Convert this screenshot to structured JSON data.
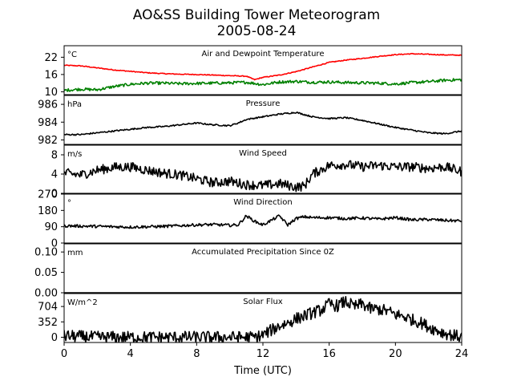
{
  "chart_data": {
    "type": "line",
    "title": "AO&SS Building Tower Meteorogram",
    "subtitle": "2005-08-24",
    "xlabel": "Time (UTC)",
    "xlim": [
      0,
      24
    ],
    "xticks": [
      0,
      4,
      8,
      12,
      16,
      20,
      24
    ],
    "panels": [
      {
        "name": "temperature",
        "title": "Air and Dewpoint Temperature",
        "unit": "°C",
        "ylim": [
          9,
          26
        ],
        "yticks": [
          10,
          16,
          22
        ],
        "series": [
          {
            "color": "#ff0000",
            "x": [
              0,
              1,
              2,
              3,
              4,
              5,
              6,
              7,
              8,
              9,
              10,
              11,
              11.5,
              12,
              13,
              14,
              15,
              16,
              17,
              18,
              19,
              20,
              21,
              22,
              23,
              24
            ],
            "y": [
              19.2,
              19.0,
              18.3,
              17.6,
              17.1,
              16.6,
              16.3,
              16.1,
              16.0,
              15.8,
              15.6,
              15.4,
              14.2,
              15.0,
              15.8,
              17.0,
              18.6,
              20.2,
              21.0,
              21.6,
              22.3,
              22.9,
              23.2,
              23.0,
              22.8,
              22.7
            ],
            "noise": 0.15
          },
          {
            "color": "#008000",
            "x": [
              0,
              1,
              2,
              3,
              4,
              5,
              6,
              7,
              8,
              9,
              10,
              11,
              12,
              13,
              14,
              15,
              16,
              17,
              18,
              19,
              20,
              21,
              22,
              23,
              24
            ],
            "y": [
              10.5,
              10.9,
              10.7,
              11.8,
              12.6,
              13.0,
              13.0,
              12.8,
              12.9,
              13.0,
              13.1,
              13.3,
              12.5,
              13.4,
              13.6,
              13.3,
              13.4,
              13.2,
              13.1,
              13.0,
              12.7,
              13.2,
              13.5,
              14.0,
              14.2
            ],
            "noise": 0.5
          }
        ]
      },
      {
        "name": "pressure",
        "title": "Pressure",
        "unit": "hPa",
        "ylim": [
          981.5,
          987
        ],
        "yticks": [
          982,
          984,
          986
        ],
        "series": [
          {
            "color": "#000000",
            "x": [
              0,
              1,
              2,
              3,
              4,
              5,
              6,
              7,
              8,
              9,
              10,
              10.5,
              11,
              12,
              13,
              14,
              15,
              16,
              17,
              18,
              19,
              20,
              21,
              22,
              23,
              24
            ],
            "y": [
              982.6,
              982.6,
              982.8,
              983.0,
              983.2,
              983.4,
              983.5,
              983.7,
              983.9,
              983.7,
              983.6,
              983.9,
              984.3,
              984.6,
              984.9,
              985.1,
              984.6,
              984.4,
              984.5,
              984.2,
              983.8,
              983.4,
              983.1,
              982.8,
              982.7,
              983.0
            ],
            "noise": 0.08
          }
        ]
      },
      {
        "name": "wind_speed",
        "title": "Wind Speed",
        "unit": "m/s",
        "ylim": [
          0,
          10
        ],
        "yticks": [
          0,
          4,
          8
        ],
        "series": [
          {
            "color": "#000000",
            "x": [
              0,
              1,
              2,
              3,
              4,
              5,
              6,
              7,
              8,
              9,
              10,
              11,
              12,
              13,
              14,
              14.5,
              15,
              16,
              17,
              18,
              19,
              20,
              21,
              22,
              23,
              24
            ],
            "y": [
              4.2,
              3.8,
              4.8,
              5.4,
              5.5,
              4.8,
              4.2,
              3.8,
              3.0,
              2.2,
              2.5,
              1.8,
              1.6,
              2.0,
              1.3,
              1.5,
              4.0,
              5.8,
              6.0,
              5.5,
              5.8,
              5.5,
              5.5,
              5.2,
              5.5,
              4.5
            ],
            "noise": 1.0
          }
        ]
      },
      {
        "name": "wind_direction",
        "title": "Wind Direction",
        "unit": "°",
        "ylim": [
          0,
          270
        ],
        "yticks": [
          0,
          90,
          180,
          270
        ],
        "series": [
          {
            "color": "#000000",
            "x": [
              0,
              2,
              4,
              6,
              8,
              9,
              10,
              10.5,
              11,
              11.5,
              12,
              12.5,
              13,
              13.5,
              14,
              14.5,
              15,
              16,
              17,
              18,
              19,
              20,
              21,
              22,
              23,
              24
            ],
            "y": [
              95,
              92,
              88,
              92,
              100,
              102,
              98,
              100,
              150,
              120,
              100,
              125,
              150,
              100,
              135,
              145,
              140,
              140,
              135,
              138,
              132,
              140,
              128,
              130,
              125,
              122
            ],
            "noise": 8
          }
        ]
      },
      {
        "name": "precipitation",
        "title": "Accumulated Precipitation Since 0Z",
        "unit": "mm",
        "ylim": [
          0,
          0.12
        ],
        "yticks": [
          0.0,
          0.05,
          0.1
        ],
        "yticklabels": [
          "0.00",
          "0.05",
          "0.10"
        ],
        "series": [
          {
            "color": "#000000",
            "x": [
              0,
              24
            ],
            "y": [
              0,
              0
            ],
            "noise": 0
          }
        ]
      },
      {
        "name": "solar_flux",
        "title": "Solar Flux",
        "unit": "W/m^2",
        "ylim": [
          -120,
          1000
        ],
        "yticks": [
          0,
          352,
          704
        ],
        "series": [
          {
            "color": "#000000",
            "x": [
              0,
              2,
              4,
              6,
              8,
              10,
              11.5,
              12,
              12.5,
              13,
              13.5,
              14,
              14.5,
              15,
              15.5,
              16,
              16.5,
              17,
              17.5,
              18,
              18.5,
              19,
              19.5,
              20,
              20.5,
              21,
              21.5,
              22,
              22.5,
              23,
              23.5,
              24
            ],
            "y": [
              30,
              0,
              0,
              0,
              0,
              0,
              0,
              50,
              160,
              260,
              330,
              420,
              490,
              560,
              620,
              760,
              720,
              820,
              700,
              760,
              650,
              640,
              600,
              520,
              480,
              400,
              340,
              240,
              160,
              90,
              40,
              10
            ],
            "noise": 140
          }
        ]
      }
    ]
  }
}
